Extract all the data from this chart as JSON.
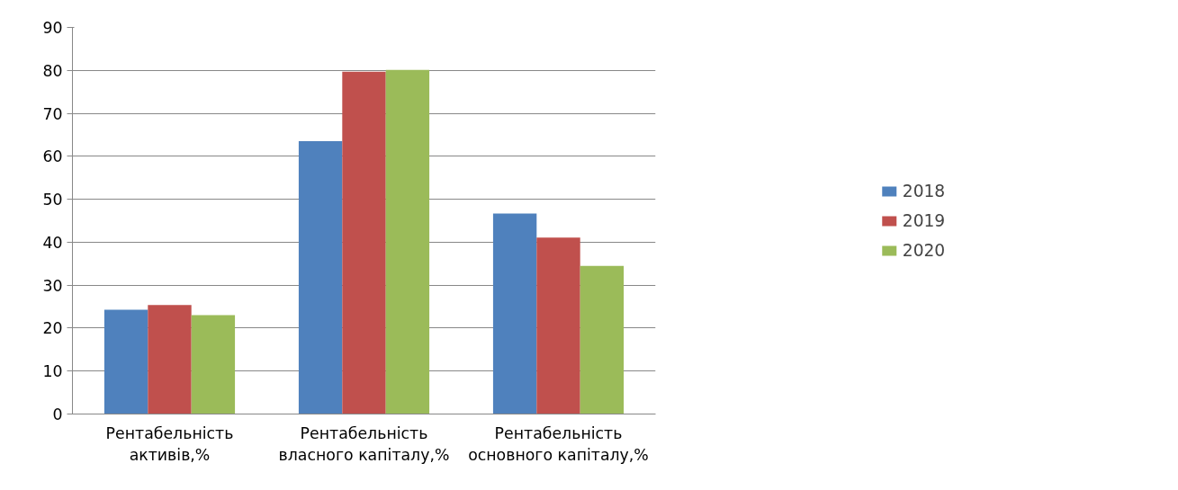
{
  "chart_data": {
    "type": "bar",
    "categories": [
      "Рентабельність активів,%",
      "Рентабельність власного капіталу,%",
      "Рентабельність основного капіталу,%"
    ],
    "series": [
      {
        "name": "2018",
        "color": "#4f81bd",
        "values": [
          24.3,
          63.5,
          46.7
        ]
      },
      {
        "name": "2019",
        "color": "#c0504d",
        "values": [
          25.4,
          79.7,
          41.1
        ]
      },
      {
        "name": "2020",
        "color": "#9bbb59",
        "values": [
          23.0,
          80.1,
          34.5
        ]
      }
    ],
    "ylim": [
      0,
      90
    ],
    "yticks": [
      0,
      10,
      20,
      30,
      40,
      50,
      60,
      70,
      80,
      90
    ],
    "grid": "y",
    "legend": "right"
  }
}
